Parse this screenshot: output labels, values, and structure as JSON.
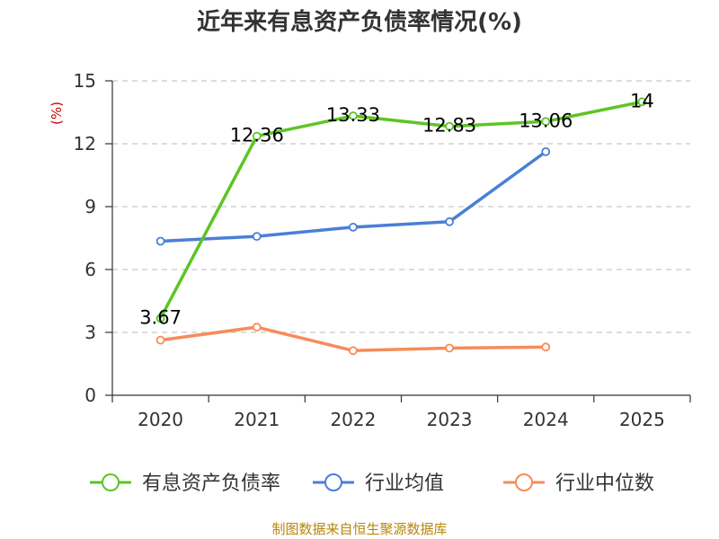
{
  "chart_data": {
    "type": "line",
    "title": "近年来有息资产负债率情况(%)",
    "unit_label": "(%)",
    "categories": [
      "2020",
      "2021",
      "2022",
      "2023",
      "2024",
      "2025"
    ],
    "ylim": [
      0,
      15
    ],
    "yticks": [
      0,
      3,
      6,
      9,
      12,
      15
    ],
    "grid": true,
    "legend_position": "bottom",
    "series": [
      {
        "name": "有息资产负债率",
        "color": "#5cc524",
        "values": [
          3.67,
          12.36,
          13.33,
          12.83,
          13.06,
          14
        ],
        "labels": [
          "3.67",
          "12.36",
          "13.33",
          "12.83",
          "13.06",
          "14"
        ]
      },
      {
        "name": "行业均值",
        "color": "#4a7fd6",
        "values": [
          7.35,
          7.58,
          8.02,
          8.28,
          11.62,
          null
        ]
      },
      {
        "name": "行业中位数",
        "color": "#f68c5a",
        "values": [
          2.63,
          3.25,
          2.13,
          2.25,
          2.3,
          null
        ]
      }
    ]
  },
  "source": "制图数据来自恒生聚源数据库"
}
